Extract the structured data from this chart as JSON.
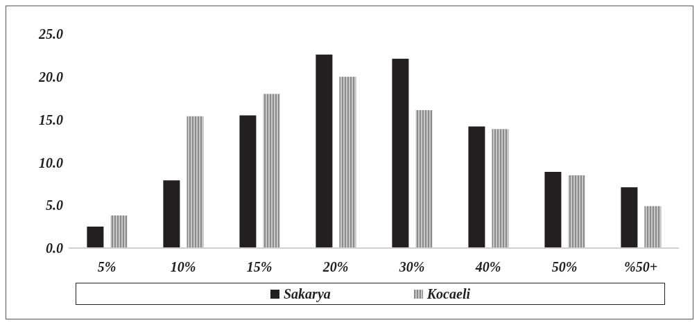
{
  "chart_data": {
    "type": "bar",
    "categories": [
      "5%",
      "10%",
      "15%",
      "20%",
      "30%",
      "40%",
      "50%",
      "%50+"
    ],
    "series": [
      {
        "name": "Sakarya",
        "color": "#231f20",
        "values": [
          2.5,
          7.9,
          15.5,
          22.6,
          22.1,
          14.2,
          8.9,
          7.1
        ]
      },
      {
        "name": "Kocaeli",
        "color": "#8a8a8a",
        "values": [
          3.8,
          15.4,
          18.0,
          20.0,
          16.1,
          13.9,
          8.5,
          4.9
        ]
      }
    ],
    "ylim": [
      0,
      25
    ],
    "yticks": [
      {
        "value": 0,
        "label": "0.0"
      },
      {
        "value": 5,
        "label": "5.0"
      },
      {
        "value": 10,
        "label": "10.0"
      },
      {
        "value": 15,
        "label": "15.0"
      },
      {
        "value": 20,
        "label": "20.0"
      },
      {
        "value": 25,
        "label": "25.0"
      }
    ],
    "grid": false,
    "legend": "bottom"
  }
}
